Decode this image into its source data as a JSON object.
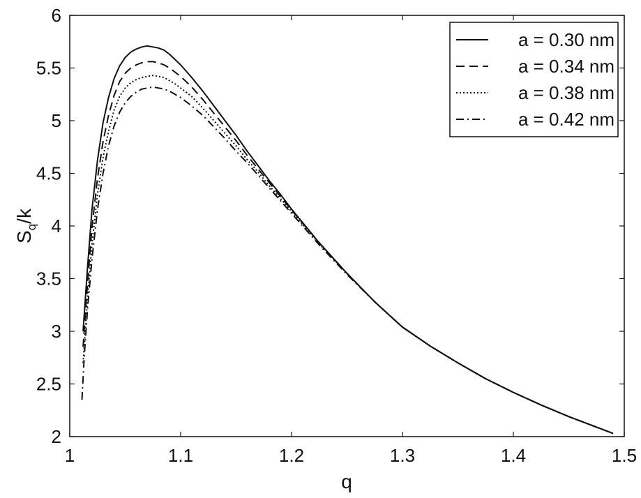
{
  "chart_data": {
    "type": "line",
    "title": "",
    "xlabel": "q",
    "ylabel": "S",
    "ylabel_sub": "q",
    "ylabel_suffix": "/k",
    "xlim": [
      1.0,
      1.5
    ],
    "ylim": [
      2.0,
      6.0
    ],
    "x_ticks": [
      "1",
      "1.1",
      "1.2",
      "1.3",
      "1.4",
      "1.5"
    ],
    "y_ticks": [
      "2",
      "2.5",
      "3",
      "3.5",
      "4",
      "4.5",
      "5",
      "5.5",
      "6"
    ],
    "grid": false,
    "legend_position": "top-right",
    "series": [
      {
        "name": "a = 0.30 nm",
        "line_style": "solid",
        "x": [
          1.012,
          1.016,
          1.02,
          1.025,
          1.03,
          1.035,
          1.04,
          1.045,
          1.05,
          1.055,
          1.06,
          1.065,
          1.07,
          1.075,
          1.08,
          1.085,
          1.09,
          1.095,
          1.1,
          1.11,
          1.12,
          1.13,
          1.14,
          1.15,
          1.16,
          1.17,
          1.18,
          1.19,
          1.2,
          1.225,
          1.25,
          1.275,
          1.3,
          1.325,
          1.35,
          1.375,
          1.4,
          1.425,
          1.45,
          1.475,
          1.49
        ],
        "y": [
          3.0,
          3.6,
          4.15,
          4.62,
          4.98,
          5.22,
          5.4,
          5.52,
          5.6,
          5.65,
          5.68,
          5.7,
          5.71,
          5.7,
          5.69,
          5.67,
          5.63,
          5.58,
          5.53,
          5.41,
          5.28,
          5.14,
          5.0,
          4.86,
          4.71,
          4.57,
          4.43,
          4.3,
          4.16,
          3.84,
          3.55,
          3.28,
          3.04,
          2.86,
          2.7,
          2.55,
          2.42,
          2.3,
          2.19,
          2.09,
          2.03
        ]
      },
      {
        "name": "a = 0.34 nm",
        "line_style": "dashed",
        "x": [
          1.012,
          1.016,
          1.02,
          1.025,
          1.03,
          1.035,
          1.04,
          1.045,
          1.05,
          1.055,
          1.06,
          1.065,
          1.07,
          1.075,
          1.08,
          1.085,
          1.09,
          1.095,
          1.1,
          1.11,
          1.12,
          1.13,
          1.14,
          1.15,
          1.16,
          1.17,
          1.18,
          1.19,
          1.2,
          1.225,
          1.25,
          1.275,
          1.3,
          1.325,
          1.35,
          1.375,
          1.4,
          1.425,
          1.45,
          1.475,
          1.49
        ],
        "y": [
          2.85,
          3.45,
          3.98,
          4.45,
          4.8,
          5.05,
          5.24,
          5.37,
          5.45,
          5.5,
          5.53,
          5.55,
          5.56,
          5.56,
          5.55,
          5.53,
          5.5,
          5.46,
          5.42,
          5.32,
          5.2,
          5.07,
          4.94,
          4.81,
          4.67,
          4.54,
          4.41,
          4.28,
          4.15,
          3.84,
          3.55,
          3.28,
          3.04,
          2.86,
          2.7,
          2.55,
          2.42,
          2.3,
          2.19,
          2.09,
          2.03
        ]
      },
      {
        "name": "a = 0.38 nm",
        "line_style": "dotted",
        "x": [
          1.012,
          1.016,
          1.02,
          1.025,
          1.03,
          1.035,
          1.04,
          1.045,
          1.05,
          1.055,
          1.06,
          1.065,
          1.07,
          1.075,
          1.08,
          1.085,
          1.09,
          1.095,
          1.1,
          1.11,
          1.12,
          1.13,
          1.14,
          1.15,
          1.16,
          1.17,
          1.18,
          1.19,
          1.2,
          1.225,
          1.25,
          1.275,
          1.3,
          1.325,
          1.35,
          1.375,
          1.4,
          1.425,
          1.45,
          1.475,
          1.49
        ],
        "y": [
          2.7,
          3.3,
          3.82,
          4.3,
          4.65,
          4.9,
          5.1,
          5.23,
          5.31,
          5.36,
          5.39,
          5.41,
          5.42,
          5.43,
          5.42,
          5.41,
          5.38,
          5.35,
          5.31,
          5.23,
          5.12,
          5.0,
          4.88,
          4.76,
          4.63,
          4.51,
          4.38,
          4.26,
          4.14,
          3.83,
          3.55,
          3.28,
          3.04,
          2.86,
          2.7,
          2.55,
          2.42,
          2.3,
          2.19,
          2.09,
          2.03
        ]
      },
      {
        "name": "a = 0.42 nm",
        "line_style": "dashdot",
        "x": [
          1.011,
          1.013,
          1.016,
          1.02,
          1.025,
          1.03,
          1.035,
          1.04,
          1.045,
          1.05,
          1.055,
          1.06,
          1.065,
          1.07,
          1.075,
          1.08,
          1.085,
          1.09,
          1.095,
          1.1,
          1.11,
          1.12,
          1.13,
          1.14,
          1.15,
          1.16,
          1.17,
          1.18,
          1.19,
          1.2,
          1.225,
          1.25,
          1.275,
          1.3,
          1.325,
          1.35,
          1.375,
          1.4,
          1.425,
          1.45,
          1.475,
          1.49
        ],
        "y": [
          2.35,
          2.75,
          3.2,
          3.68,
          4.15,
          4.5,
          4.76,
          4.95,
          5.08,
          5.17,
          5.23,
          5.27,
          5.3,
          5.31,
          5.32,
          5.31,
          5.3,
          5.28,
          5.25,
          5.22,
          5.14,
          5.05,
          4.94,
          4.83,
          4.71,
          4.6,
          4.48,
          4.36,
          4.24,
          4.12,
          3.82,
          3.54,
          3.28,
          3.04,
          2.86,
          2.7,
          2.55,
          2.42,
          2.3,
          2.19,
          2.09,
          2.03
        ]
      }
    ]
  }
}
